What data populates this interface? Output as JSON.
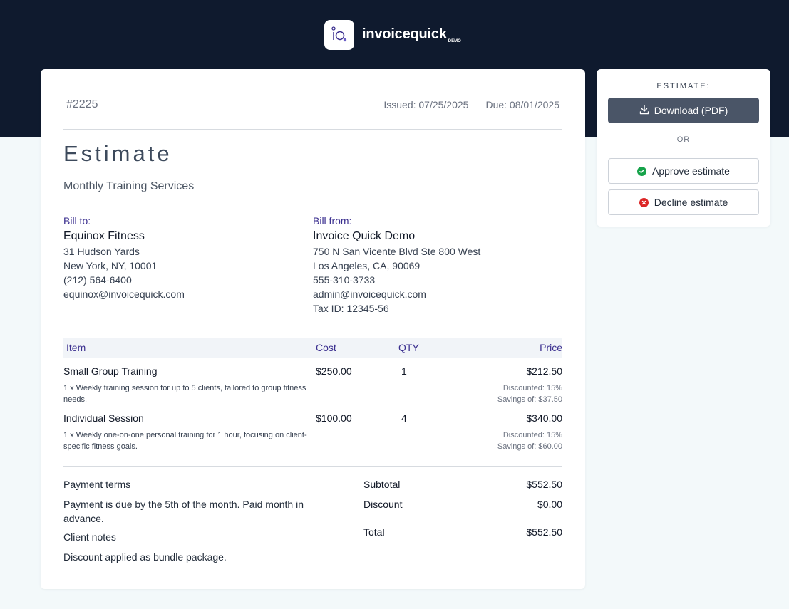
{
  "brand": {
    "name": "invoicequick",
    "tag": "DEMO"
  },
  "invoice": {
    "number": "#2225",
    "issued": "Issued: 07/25/2025",
    "due": "Due: 08/01/2025",
    "title": "Estimate",
    "subtitle": "Monthly Training Services"
  },
  "bill_to": {
    "label": "Bill to:",
    "name": "Equinox Fitness",
    "lines": [
      "31 Hudson Yards",
      "New York, NY, 10001",
      "(212) 564-6400",
      "equinox@invoicequick.com"
    ]
  },
  "bill_from": {
    "label": "Bill from:",
    "name": "Invoice Quick Demo",
    "lines": [
      "750 N San Vicente Blvd Ste 800 West",
      "Los Angeles, CA, 90069",
      "555-310-3733",
      "admin@invoicequick.com",
      "Tax ID: 12345-56"
    ]
  },
  "table": {
    "headers": {
      "item": "Item",
      "cost": "Cost",
      "qty": "QTY",
      "price": "Price"
    },
    "rows": [
      {
        "item": "Small Group Training",
        "cost": "$250.00",
        "qty": "1",
        "price": "$212.50",
        "desc": "1 x Weekly training session for up to 5 clients, tailored to group fitness needs.",
        "discount": "Discounted: 15%",
        "savings": "Savings of: $37.50"
      },
      {
        "item": "Individual Session",
        "cost": "$100.00",
        "qty": "4",
        "price": "$340.00",
        "desc": "1 x Weekly one-on-one personal training for 1 hour, focusing on client-specific fitness goals.",
        "discount": "Discounted: 15%",
        "savings": "Savings of: $60.00"
      }
    ]
  },
  "notes": {
    "terms_heading": "Payment terms",
    "terms_text": "Payment is due by the 5th of the month. Paid month in advance.",
    "client_heading": "Client notes",
    "client_text": "Discount applied as bundle package."
  },
  "totals": {
    "subtotal_label": "Subtotal",
    "subtotal": "$552.50",
    "discount_label": "Discount",
    "discount": "$0.00",
    "total_label": "Total",
    "total": "$552.50"
  },
  "sidebar": {
    "title": "ESTIMATE:",
    "download_label": "Download (PDF)",
    "or_label": "OR",
    "approve_label": "Approve estimate",
    "decline_label": "Decline estimate"
  },
  "colors": {
    "header_bg": "#0f1a2e",
    "accent": "#3b2f8f",
    "download_bg": "#4a5567",
    "approve": "#16a34a",
    "decline": "#dc2626"
  }
}
